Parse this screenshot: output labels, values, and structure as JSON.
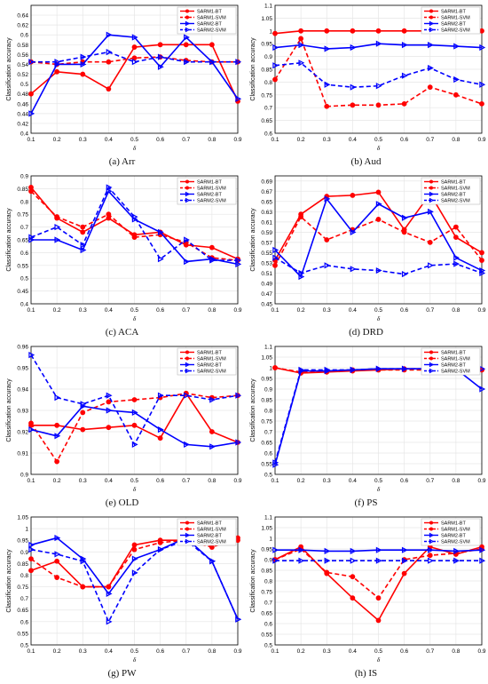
{
  "legend_entries": [
    "SARM1-BT",
    "SARM1-SVM",
    "SARM2-BT",
    "SARM2-SVM"
  ],
  "series_colors": {
    "SARM1": "#ff0000",
    "SARM2": "#0000ff"
  },
  "chart_data": [
    {
      "type": "line",
      "caption": "(a) Arr",
      "ylabel": "Classification accuracy",
      "xlabel": "δ",
      "x": [
        0.1,
        0.2,
        0.3,
        0.4,
        0.5,
        0.6,
        0.7,
        0.8,
        0.9
      ],
      "xticks": [
        "0.1",
        "0.2",
        "0.3",
        "0.4",
        "0.5",
        "0.6",
        "0.7",
        "0.8",
        "0.9"
      ],
      "ylim": [
        0.4,
        0.66
      ],
      "yticks": [
        "0.4",
        "0.42",
        "0.44",
        "0.46",
        "0.48",
        "0.5",
        "0.52",
        "0.54",
        "0.56",
        "0.58",
        "0.6",
        "0.62",
        "0.64"
      ],
      "legend": "top-right",
      "series": [
        {
          "name": "SARM1-BT",
          "values": [
            0.48,
            0.525,
            0.52,
            0.49,
            0.575,
            0.58,
            0.58,
            0.58,
            0.465
          ]
        },
        {
          "name": "SARM1-SVM",
          "values": [
            0.545,
            0.54,
            0.545,
            0.545,
            0.553,
            0.555,
            0.548,
            0.545,
            0.545
          ]
        },
        {
          "name": "SARM2-BT",
          "values": [
            0.44,
            0.54,
            0.54,
            0.6,
            0.595,
            0.535,
            0.595,
            0.545,
            0.47
          ]
        },
        {
          "name": "SARM2-SVM",
          "values": [
            0.545,
            0.545,
            0.555,
            0.565,
            0.545,
            0.555,
            0.545,
            0.545,
            0.545
          ]
        }
      ]
    },
    {
      "type": "line",
      "caption": "(b) Aud",
      "ylabel": "Classification accuracy",
      "xlabel": "δ",
      "x": [
        0.1,
        0.2,
        0.3,
        0.4,
        0.5,
        0.6,
        0.7,
        0.8,
        0.9
      ],
      "xticks": [
        "0.1",
        "0.2",
        "0.3",
        "0.4",
        "0.5",
        "0.6",
        "0.7",
        "0.8",
        "0.9"
      ],
      "ylim": [
        0.6,
        1.1
      ],
      "yticks": [
        "0.6",
        "0.65",
        "0.7",
        "0.75",
        "0.8",
        "0.85",
        "0.9",
        "0.95",
        "1",
        "1.05",
        "1.1"
      ],
      "legend": "top-right",
      "series": [
        {
          "name": "SARM1-BT",
          "values": [
            0.99,
            1.0,
            1.0,
            1.0,
            1.0,
            1.0,
            1.0,
            1.0,
            1.0
          ]
        },
        {
          "name": "SARM1-SVM",
          "values": [
            0.81,
            0.97,
            0.705,
            0.71,
            0.71,
            0.715,
            0.78,
            0.75,
            0.715
          ]
        },
        {
          "name": "SARM2-BT",
          "values": [
            0.935,
            0.945,
            0.93,
            0.935,
            0.95,
            0.945,
            0.945,
            0.94,
            0.935
          ]
        },
        {
          "name": "SARM2-SVM",
          "values": [
            0.865,
            0.875,
            0.79,
            0.78,
            0.785,
            0.825,
            0.855,
            0.81,
            0.79
          ]
        }
      ]
    },
    {
      "type": "line",
      "caption": "(c) ACA",
      "ylabel": "Classification accuracy",
      "xlabel": "δ",
      "x": [
        0.1,
        0.2,
        0.3,
        0.4,
        0.5,
        0.6,
        0.7,
        0.8,
        0.9
      ],
      "xticks": [
        "0.1",
        "0.2",
        "0.3",
        "0.4",
        "0.5",
        "0.6",
        "0.7",
        "0.8",
        "0.9"
      ],
      "ylim": [
        0.4,
        0.9
      ],
      "yticks": [
        "0.4",
        "0.45",
        "0.5",
        "0.55",
        "0.6",
        "0.65",
        "0.7",
        "0.75",
        "0.8",
        "0.85",
        "0.9"
      ],
      "legend": "top-right",
      "series": [
        {
          "name": "SARM1-BT",
          "values": [
            0.855,
            0.735,
            0.68,
            0.735,
            0.67,
            0.68,
            0.63,
            0.62,
            0.575
          ]
        },
        {
          "name": "SARM1-SVM",
          "values": [
            0.84,
            0.74,
            0.7,
            0.75,
            0.66,
            0.67,
            0.64,
            0.58,
            0.57
          ]
        },
        {
          "name": "SARM2-BT",
          "values": [
            0.65,
            0.65,
            0.61,
            0.84,
            0.73,
            0.68,
            0.565,
            0.575,
            0.555
          ]
        },
        {
          "name": "SARM2-SVM",
          "values": [
            0.66,
            0.7,
            0.63,
            0.855,
            0.74,
            0.575,
            0.65,
            0.57,
            0.57
          ]
        }
      ]
    },
    {
      "type": "line",
      "caption": "(d) DRD",
      "ylabel": "Classification accuracy",
      "xlabel": "δ",
      "x": [
        0.1,
        0.2,
        0.3,
        0.4,
        0.5,
        0.6,
        0.7,
        0.8,
        0.9
      ],
      "xticks": [
        "0.1",
        "0.2",
        "0.3",
        "0.4",
        "0.5",
        "0.6",
        "0.7",
        "0.8",
        "0.9"
      ],
      "ylim": [
        0.45,
        0.7
      ],
      "yticks": [
        "0.45",
        "0.47",
        "0.49",
        "0.51",
        "0.53",
        "0.55",
        "0.57",
        "0.59",
        "0.61",
        "0.63",
        "0.65",
        "0.67",
        "0.69"
      ],
      "legend": "top-right",
      "series": [
        {
          "name": "SARM1-BT",
          "values": [
            0.535,
            0.625,
            0.66,
            0.662,
            0.668,
            0.595,
            0.665,
            0.58,
            0.55
          ]
        },
        {
          "name": "SARM1-SVM",
          "values": [
            0.525,
            0.62,
            0.575,
            0.595,
            0.615,
            0.59,
            0.57,
            0.6,
            0.535
          ]
        },
        {
          "name": "SARM2-BT",
          "values": [
            0.555,
            0.503,
            0.655,
            0.59,
            0.645,
            0.618,
            0.63,
            0.54,
            0.515
          ]
        },
        {
          "name": "SARM2-SVM",
          "values": [
            0.54,
            0.51,
            0.525,
            0.518,
            0.515,
            0.508,
            0.525,
            0.528,
            0.51
          ]
        }
      ]
    },
    {
      "type": "line",
      "caption": "(e) OLD",
      "ylabel": "Classification accuracy",
      "xlabel": "δ",
      "x": [
        0.1,
        0.2,
        0.3,
        0.4,
        0.5,
        0.6,
        0.7,
        0.8,
        0.9
      ],
      "xticks": [
        "0.1",
        "0.2",
        "0.3",
        "0.4",
        "0.5",
        "0.6",
        "0.7",
        "0.8",
        "0.9"
      ],
      "ylim": [
        0.9,
        0.96
      ],
      "yticks": [
        "0.9",
        "0.91",
        "0.92",
        "0.93",
        "0.94",
        "0.95",
        "0.96"
      ],
      "legend": "top-right",
      "series": [
        {
          "name": "SARM1-BT",
          "values": [
            0.923,
            0.923,
            0.921,
            0.922,
            0.923,
            0.917,
            0.938,
            0.92,
            0.915
          ]
        },
        {
          "name": "SARM1-SVM",
          "values": [
            0.924,
            0.906,
            0.929,
            0.934,
            0.935,
            0.936,
            0.938,
            0.936,
            0.937
          ]
        },
        {
          "name": "SARM2-BT",
          "values": [
            0.921,
            0.918,
            0.932,
            0.93,
            0.929,
            0.921,
            0.914,
            0.913,
            0.915
          ]
        },
        {
          "name": "SARM2-SVM",
          "values": [
            0.956,
            0.936,
            0.933,
            0.937,
            0.914,
            0.937,
            0.937,
            0.935,
            0.937
          ]
        }
      ]
    },
    {
      "type": "line",
      "caption": "(f) PS",
      "ylabel": "Classification accuracy",
      "xlabel": "δ",
      "x": [
        0.1,
        0.2,
        0.3,
        0.4,
        0.5,
        0.6,
        0.7,
        0.8,
        0.9
      ],
      "xticks": [
        "0.1",
        "0.2",
        "0.3",
        "0.4",
        "0.5",
        "0.6",
        "0.7",
        "0.8",
        "0.9"
      ],
      "ylim": [
        0.5,
        1.1
      ],
      "yticks": [
        "0.5",
        "0.55",
        "0.6",
        "0.65",
        "0.7",
        "0.75",
        "0.8",
        "0.85",
        "0.9",
        "0.95",
        "1",
        "1.05",
        "1.1"
      ],
      "legend": "top-right",
      "series": [
        {
          "name": "SARM1-BT",
          "values": [
            1.0,
            0.975,
            0.98,
            0.985,
            0.99,
            0.995,
            0.995,
            0.99,
            0.99
          ]
        },
        {
          "name": "SARM1-SVM",
          "values": [
            1.0,
            0.98,
            0.985,
            0.99,
            0.99,
            0.99,
            0.99,
            0.99,
            0.99
          ]
        },
        {
          "name": "SARM2-BT",
          "values": [
            0.545,
            0.985,
            0.985,
            0.99,
            0.995,
            0.995,
            0.995,
            0.995,
            0.9
          ]
        },
        {
          "name": "SARM2-SVM",
          "values": [
            0.555,
            0.99,
            0.99,
            0.99,
            0.995,
            0.995,
            0.995,
            0.995,
            0.995
          ]
        }
      ]
    },
    {
      "type": "line",
      "caption": "(g) PW",
      "ylabel": "Classification accuracy",
      "xlabel": "δ",
      "x": [
        0.1,
        0.2,
        0.3,
        0.4,
        0.5,
        0.6,
        0.7,
        0.8,
        0.9
      ],
      "xticks": [
        "0.1",
        "0.2",
        "0.3",
        "0.4",
        "0.5",
        "0.6",
        "0.7",
        "0.8",
        "0.9"
      ],
      "ylim": [
        0.5,
        1.05
      ],
      "yticks": [
        "0.5",
        "0.55",
        "0.6",
        "0.65",
        "0.7",
        "0.75",
        "0.8",
        "0.85",
        "0.9",
        "0.95",
        "1",
        "1.05"
      ],
      "legend": "top-right",
      "series": [
        {
          "name": "SARM1-BT",
          "values": [
            0.82,
            0.86,
            0.75,
            0.75,
            0.93,
            0.95,
            0.95,
            0.93,
            0.95
          ]
        },
        {
          "name": "SARM1-SVM",
          "values": [
            0.87,
            0.79,
            0.75,
            0.75,
            0.91,
            0.94,
            0.95,
            0.92,
            0.96
          ]
        },
        {
          "name": "SARM2-BT",
          "values": [
            0.93,
            0.96,
            0.87,
            0.72,
            0.87,
            0.91,
            0.96,
            0.86,
            0.61
          ]
        },
        {
          "name": "SARM2-SVM",
          "values": [
            0.91,
            0.89,
            0.86,
            0.6,
            0.81,
            0.91,
            0.95,
            0.86,
            0.61
          ]
        }
      ]
    },
    {
      "type": "line",
      "caption": "(h) IS",
      "ylabel": "Classification accuracy",
      "xlabel": "δ",
      "x": [
        0.1,
        0.2,
        0.3,
        0.4,
        0.5,
        0.6,
        0.7,
        0.8,
        0.9
      ],
      "xticks": [
        "0.1",
        "0.2",
        "0.3",
        "0.4",
        "0.5",
        "0.6",
        "0.7",
        "0.8",
        "0.9"
      ],
      "ylim": [
        0.5,
        1.1
      ],
      "yticks": [
        "0.5",
        "0.55",
        "0.6",
        "0.65",
        "0.7",
        "0.75",
        "0.8",
        "0.85",
        "0.9",
        "0.95",
        "1",
        "1.05",
        "1.1"
      ],
      "legend": "top-right",
      "series": [
        {
          "name": "SARM1-BT",
          "values": [
            0.9,
            0.96,
            0.835,
            0.72,
            0.615,
            0.835,
            0.96,
            0.925,
            0.96
          ]
        },
        {
          "name": "SARM1-SVM",
          "values": [
            0.9,
            0.95,
            0.84,
            0.82,
            0.72,
            0.9,
            0.92,
            0.93,
            0.95
          ]
        },
        {
          "name": "SARM2-BT",
          "values": [
            0.945,
            0.945,
            0.94,
            0.94,
            0.945,
            0.945,
            0.945,
            0.94,
            0.945
          ]
        },
        {
          "name": "SARM2-SVM",
          "values": [
            0.895,
            0.895,
            0.895,
            0.895,
            0.895,
            0.895,
            0.895,
            0.895,
            0.895
          ]
        }
      ]
    }
  ]
}
